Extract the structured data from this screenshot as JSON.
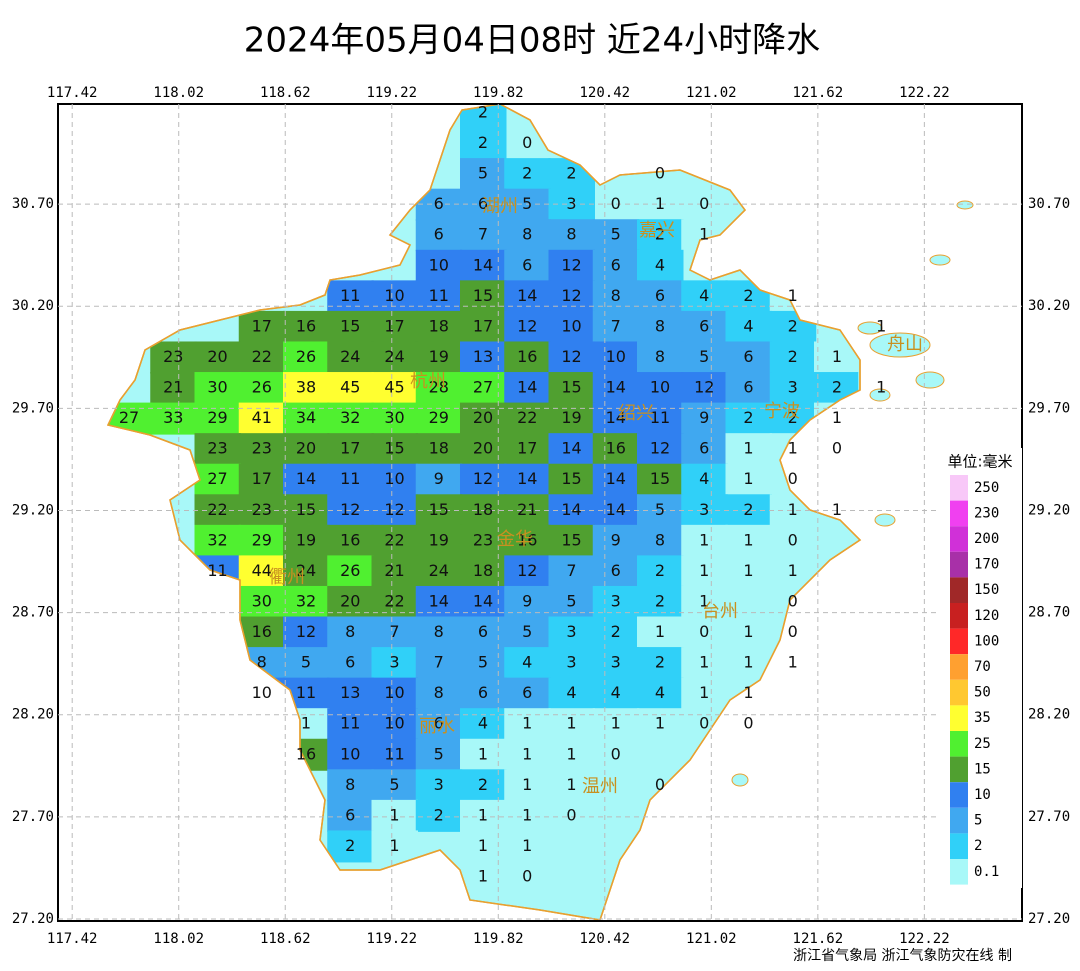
{
  "title": "2024年05月04日08时  近24小时降水",
  "map": {
    "xlim": [
      117.34,
      122.77
    ],
    "ylim": [
      27.19,
      31.19
    ],
    "xticks": [
      117.42,
      118.02,
      118.62,
      119.22,
      119.82,
      120.42,
      121.02,
      121.62,
      122.22
    ],
    "yticks": [
      {
        "value": 30.7,
        "label": "30.70"
      },
      {
        "value": 30.2,
        "label": "30.20"
      },
      {
        "value": 29.7,
        "label": "29.70"
      },
      {
        "value": 29.2,
        "label": "29.20"
      },
      {
        "value": 28.7,
        "label": "28.70"
      },
      {
        "value": 28.2,
        "label": "28.20"
      },
      {
        "value": 27.7,
        "label": "27.70"
      },
      {
        "value": 27.2,
        "label": "27.20"
      }
    ],
    "grid": true,
    "cities": [
      "湖州",
      "嘉兴",
      "杭州",
      "绍兴",
      "宁波",
      "舟山",
      "金华",
      "衢州",
      "台州",
      "丽水",
      "温州"
    ],
    "values": [
      [
        null,
        null,
        null,
        null,
        null,
        null,
        null,
        null,
        2,
        null,
        null,
        null,
        null,
        null,
        null,
        null,
        null,
        null
      ],
      [
        null,
        null,
        null,
        null,
        null,
        null,
        null,
        null,
        2,
        0,
        null,
        null,
        null,
        null,
        null,
        null,
        null,
        null
      ],
      [
        null,
        null,
        null,
        null,
        null,
        null,
        null,
        null,
        5,
        2,
        2,
        null,
        0,
        null,
        null,
        null,
        null,
        null
      ],
      [
        null,
        null,
        null,
        null,
        null,
        null,
        null,
        6,
        6,
        5,
        3,
        0,
        1,
        0,
        null,
        null,
        null,
        null
      ],
      [
        null,
        null,
        null,
        null,
        null,
        null,
        null,
        6,
        7,
        8,
        8,
        5,
        2,
        1,
        null,
        null,
        null,
        null
      ],
      [
        null,
        null,
        null,
        null,
        null,
        null,
        null,
        10,
        14,
        6,
        12,
        6,
        4,
        null,
        null,
        null,
        null,
        null
      ],
      [
        null,
        null,
        null,
        null,
        null,
        11,
        10,
        11,
        15,
        14,
        12,
        8,
        6,
        4,
        2,
        1,
        null,
        null
      ],
      [
        null,
        null,
        null,
        17,
        16,
        15,
        17,
        18,
        17,
        12,
        10,
        7,
        8,
        6,
        4,
        2,
        null,
        1
      ],
      [
        null,
        23,
        20,
        22,
        26,
        24,
        24,
        19,
        13,
        16,
        12,
        10,
        8,
        5,
        6,
        2,
        1,
        null
      ],
      [
        null,
        21,
        30,
        26,
        38,
        45,
        45,
        28,
        27,
        14,
        15,
        14,
        10,
        12,
        6,
        3,
        2,
        1
      ],
      [
        27,
        33,
        29,
        41,
        34,
        32,
        30,
        29,
        20,
        22,
        19,
        14,
        11,
        9,
        2,
        2,
        1,
        null
      ],
      [
        null,
        null,
        23,
        23,
        20,
        17,
        15,
        18,
        20,
        17,
        14,
        16,
        12,
        6,
        1,
        1,
        0,
        null
      ],
      [
        null,
        null,
        27,
        17,
        14,
        11,
        10,
        9,
        12,
        14,
        15,
        14,
        15,
        4,
        1,
        0,
        null,
        null
      ],
      [
        null,
        null,
        22,
        23,
        15,
        12,
        12,
        15,
        18,
        21,
        14,
        14,
        5,
        3,
        2,
        1,
        1,
        null
      ],
      [
        null,
        null,
        32,
        29,
        19,
        16,
        22,
        19,
        23,
        16,
        15,
        9,
        8,
        1,
        1,
        0,
        null,
        null
      ],
      [
        null,
        null,
        11,
        44,
        24,
        26,
        21,
        24,
        18,
        12,
        7,
        6,
        2,
        1,
        1,
        1,
        null,
        null
      ],
      [
        null,
        null,
        null,
        30,
        32,
        20,
        22,
        14,
        14,
        9,
        5,
        3,
        2,
        1,
        null,
        0,
        null,
        null
      ],
      [
        null,
        null,
        null,
        16,
        12,
        8,
        7,
        8,
        6,
        5,
        3,
        2,
        1,
        0,
        1,
        0,
        null,
        null
      ],
      [
        null,
        null,
        null,
        8,
        5,
        6,
        3,
        7,
        5,
        4,
        3,
        3,
        2,
        1,
        1,
        1,
        null,
        null
      ],
      [
        null,
        null,
        null,
        10,
        11,
        13,
        10,
        8,
        6,
        6,
        4,
        4,
        4,
        1,
        1,
        null,
        null,
        null
      ],
      [
        null,
        null,
        null,
        null,
        1,
        11,
        10,
        6,
        4,
        1,
        1,
        1,
        1,
        0,
        0,
        null,
        null,
        null
      ],
      [
        null,
        null,
        null,
        null,
        16,
        10,
        11,
        5,
        1,
        1,
        1,
        0,
        null,
        null,
        null,
        null,
        null,
        null
      ],
      [
        null,
        null,
        null,
        null,
        null,
        8,
        5,
        3,
        2,
        1,
        1,
        null,
        0,
        null,
        null,
        null,
        null,
        null
      ],
      [
        null,
        null,
        null,
        null,
        null,
        6,
        1,
        2,
        1,
        1,
        0,
        null,
        null,
        null,
        null,
        null,
        null,
        null
      ],
      [
        null,
        null,
        null,
        null,
        null,
        2,
        1,
        null,
        1,
        1,
        null,
        null,
        null,
        null,
        null,
        null,
        null,
        null
      ],
      [
        null,
        null,
        null,
        null,
        null,
        null,
        null,
        null,
        1,
        0,
        null,
        null,
        null,
        null,
        null,
        null,
        null,
        null
      ]
    ]
  },
  "legend": {
    "title": "单位:毫米",
    "levels": [
      250,
      230,
      200,
      170,
      150,
      120,
      100,
      70,
      50,
      35,
      25,
      15,
      10,
      5,
      2,
      0.1
    ],
    "colors": [
      "#f8c8f8",
      "#f040f0",
      "#d030d8",
      "#a830a8",
      "#a02828",
      "#c82020",
      "#ff2828",
      "#ffa030",
      "#ffc830",
      "#ffff30",
      "#50f030",
      "#50a030",
      "#3080f0",
      "#40a8f0",
      "#30d0f8",
      "#a8f8f8"
    ]
  },
  "footer": "浙江省气象局   浙江气象防灾在线 制"
}
